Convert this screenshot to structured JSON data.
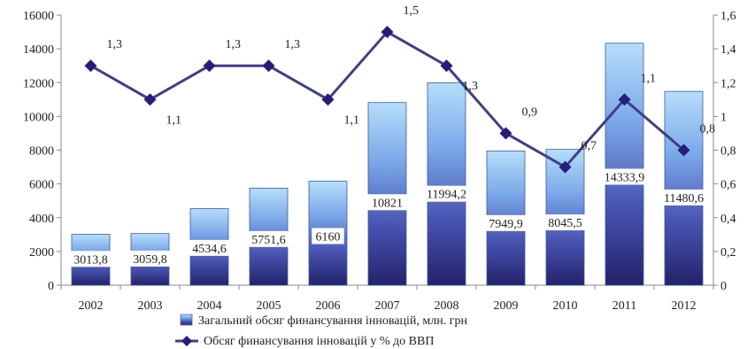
{
  "chart_data": {
    "type": "bar",
    "categories": [
      "2002",
      "2003",
      "2004",
      "2005",
      "2006",
      "2007",
      "2008",
      "2009",
      "2010",
      "2011",
      "2012"
    ],
    "series": [
      {
        "name": "Загальний обсяг  финансування інновацій, млн. грн",
        "kind": "bar",
        "axis": "left",
        "values": [
          3013.8,
          3059.8,
          4534.6,
          5751.6,
          6160,
          10821,
          11994.2,
          7949.9,
          8045.5,
          14333.9,
          11480.6
        ],
        "labels": [
          "3013,8",
          "3059,8",
          "4534,6",
          "5751,6",
          "6160",
          "10821",
          "11994,2",
          "7949,9",
          "8045,5",
          "14333,9",
          "11480,6"
        ]
      },
      {
        "name": "Обсяг финансування інновацій у % до ВВП",
        "kind": "line",
        "axis": "right",
        "values": [
          1.3,
          1.1,
          1.3,
          1.3,
          1.1,
          1.5,
          1.3,
          0.9,
          0.7,
          1.1,
          0.8
        ],
        "labels": [
          "1,3",
          "1,1",
          "1,3",
          "1,3",
          "1,1",
          "1,5",
          "1,3",
          "0,9",
          "0,7",
          "1,1",
          "0,8"
        ]
      }
    ],
    "y_left": {
      "range": [
        0,
        16000
      ],
      "ticks": [
        "0",
        "2000",
        "4000",
        "6000",
        "8000",
        "10000",
        "12000",
        "14000",
        "16000"
      ]
    },
    "y_right": {
      "range": [
        0,
        1.6
      ],
      "ticks": [
        "0",
        "0,2",
        "0,4",
        "0,6",
        "0,8",
        "1",
        "1,2",
        "1,4",
        "1,6"
      ]
    },
    "grid": false,
    "legend": "bottom",
    "colors": {
      "bar_top": "#b4ddfb",
      "bar_bottom": "#24236f",
      "line": "#3e3f88",
      "marker": "#241d7a"
    }
  }
}
